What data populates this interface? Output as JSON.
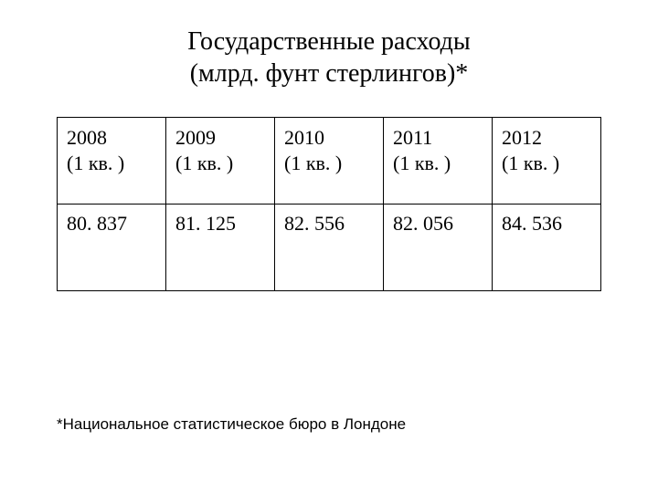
{
  "title_line1": "Государственные расходы",
  "title_line2": "(млрд. фунт стерлингов)*",
  "table": {
    "columns": [
      {
        "year": "2008",
        "quarter": " (1 кв. )"
      },
      {
        "year": "2009",
        "quarter": " (1 кв. )"
      },
      {
        "year": "2010",
        "quarter": "(1 кв. )"
      },
      {
        "year": "2011",
        "quarter": "(1 кв. )"
      },
      {
        "year": "2012",
        "quarter": "(1 кв. )"
      }
    ],
    "values": [
      "80. 837",
      "81. 125",
      "82. 556",
      "82. 056",
      "84. 536"
    ],
    "column_widths": [
      "20%",
      "20%",
      "20%",
      "20%",
      "20%"
    ]
  },
  "footnote": "*Национальное статистическое бюро в Лондоне",
  "styles": {
    "background_color": "#ffffff",
    "text_color": "#000000",
    "border_color": "#000000",
    "title_fontsize": 28,
    "cell_fontsize": 22,
    "footnote_fontsize": 17,
    "title_font": "Times New Roman",
    "cell_font": "Times New Roman",
    "footnote_font": "Arial"
  }
}
